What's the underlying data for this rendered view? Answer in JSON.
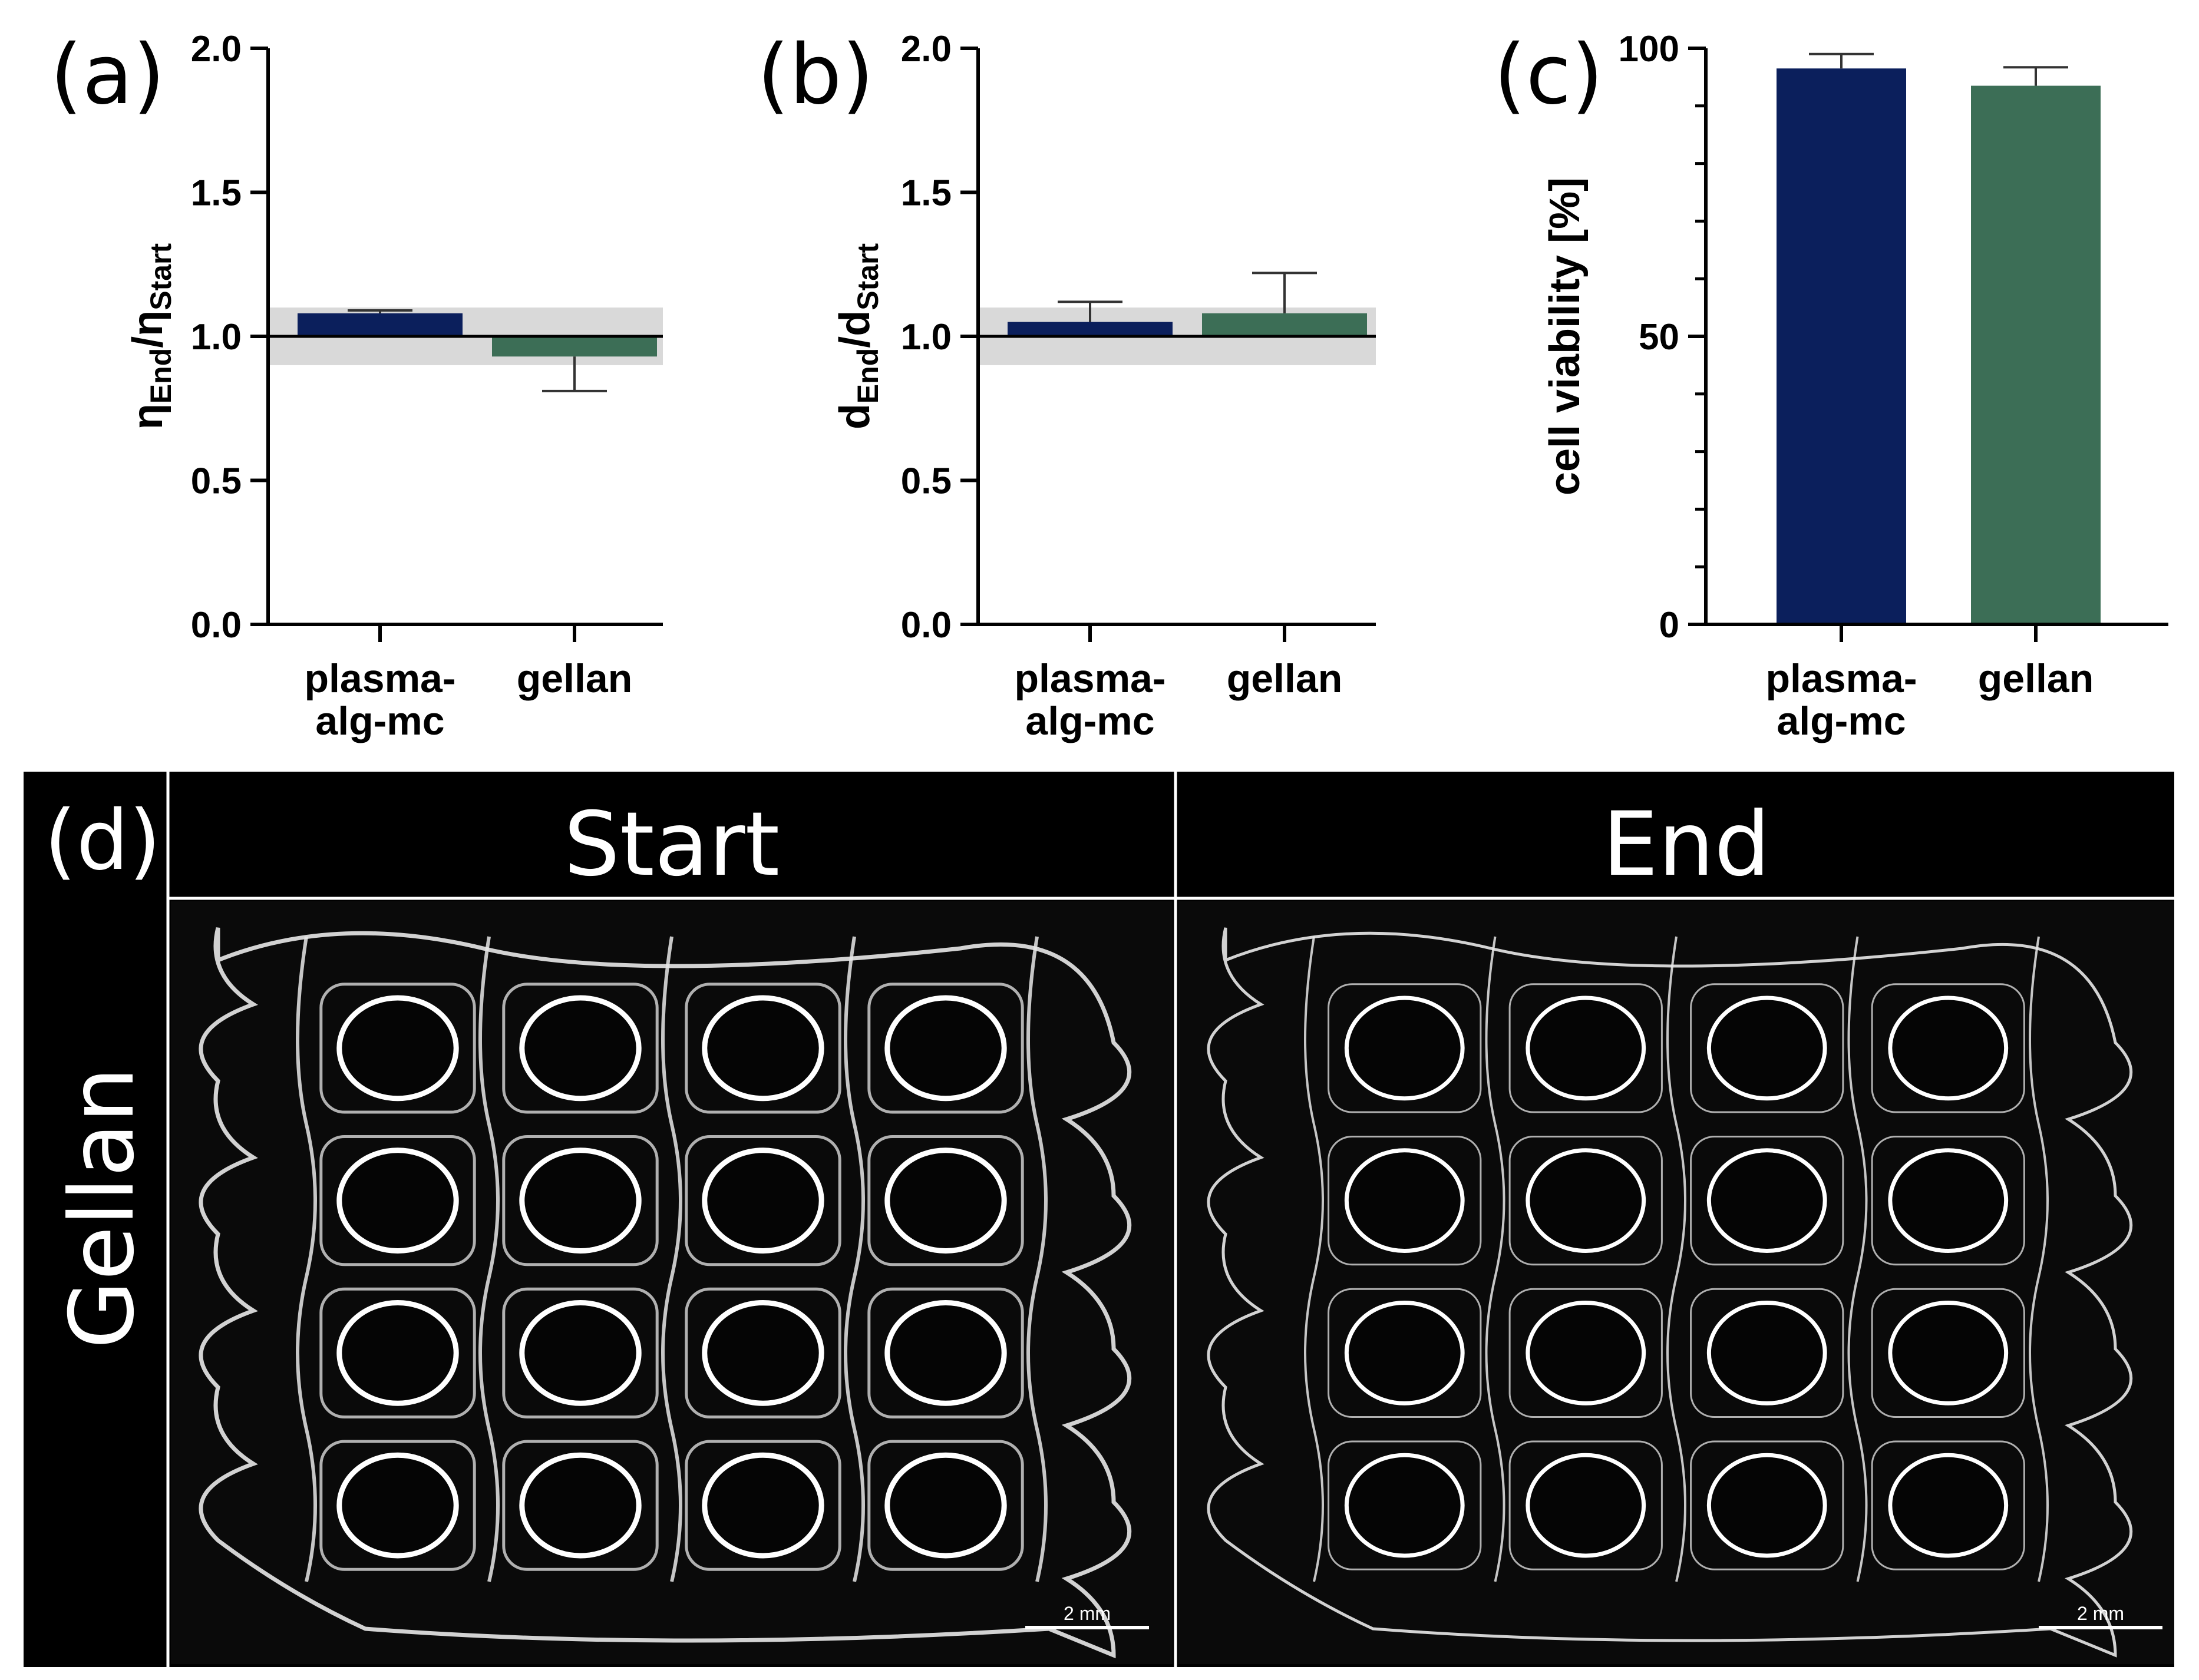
{
  "colors": {
    "plasma": "#0b1f5c",
    "gellan": "#3c6e56",
    "band": "#d9d9d9",
    "photo_bg": "#000000"
  },
  "chart_data": [
    {
      "id": "a",
      "panel_label": "(a)",
      "type": "bar",
      "categories": [
        "plasma-alg-mc",
        "gellan"
      ],
      "category_lines": [
        [
          "plasma-",
          "alg-mc"
        ],
        [
          "gellan"
        ]
      ],
      "values": [
        1.08,
        0.93
      ],
      "errors": [
        0.01,
        0.12
      ],
      "error_dir": [
        "up",
        "down"
      ],
      "baseline": 1.0,
      "band": [
        0.9,
        1.1
      ],
      "ylim": [
        0,
        2.0
      ],
      "ticks": [
        "0.0",
        "0.5",
        "1.0",
        "1.5",
        "2.0"
      ],
      "tick_values": [
        0,
        0.5,
        1.0,
        1.5,
        2.0
      ],
      "ylabel_main": "η",
      "ylabel_sub1": "End",
      "ylabel_sep": "/",
      "ylabel_main2": "η",
      "ylabel_sub2": "Start",
      "xlabel": ""
    },
    {
      "id": "b",
      "panel_label": "(b)",
      "type": "bar",
      "categories": [
        "plasma-alg-mc",
        "gellan"
      ],
      "category_lines": [
        [
          "plasma-",
          "alg-mc"
        ],
        [
          "gellan"
        ]
      ],
      "values": [
        1.05,
        1.08
      ],
      "errors": [
        0.07,
        0.14
      ],
      "error_dir": [
        "up",
        "up"
      ],
      "baseline": 1.0,
      "band": [
        0.9,
        1.1
      ],
      "ylim": [
        0,
        2.0
      ],
      "ticks": [
        "0.0",
        "0.5",
        "1.0",
        "1.5",
        "2.0"
      ],
      "tick_values": [
        0,
        0.5,
        1.0,
        1.5,
        2.0
      ],
      "ylabel_main": "d",
      "ylabel_sub1": "End",
      "ylabel_sep": "/",
      "ylabel_main2": "d",
      "ylabel_sub2": "Start",
      "xlabel": ""
    },
    {
      "id": "c",
      "panel_label": "(c)",
      "type": "bar",
      "categories": [
        "plasma-alg-mc",
        "gellan"
      ],
      "category_lines": [
        [
          "plasma-",
          "alg-mc"
        ],
        [
          "gellan"
        ]
      ],
      "values": [
        96.5,
        93.5
      ],
      "errors": [
        2.5,
        3.2
      ],
      "error_dir": [
        "up",
        "up"
      ],
      "ylim": [
        0,
        100
      ],
      "ticks": [
        "0",
        "50",
        "100"
      ],
      "tick_values": [
        0,
        50,
        100
      ],
      "minor_ticks": [
        10,
        20,
        30,
        40,
        60,
        70,
        80,
        90
      ],
      "ylabel": "cell viability [%]",
      "xlabel": ""
    }
  ],
  "photos": {
    "panel_label": "(d)",
    "row_label": "Gellan",
    "columns": [
      {
        "title": "Start",
        "scale_bar": "2 mm"
      },
      {
        "title": "End",
        "scale_bar": "2 mm"
      }
    ]
  }
}
